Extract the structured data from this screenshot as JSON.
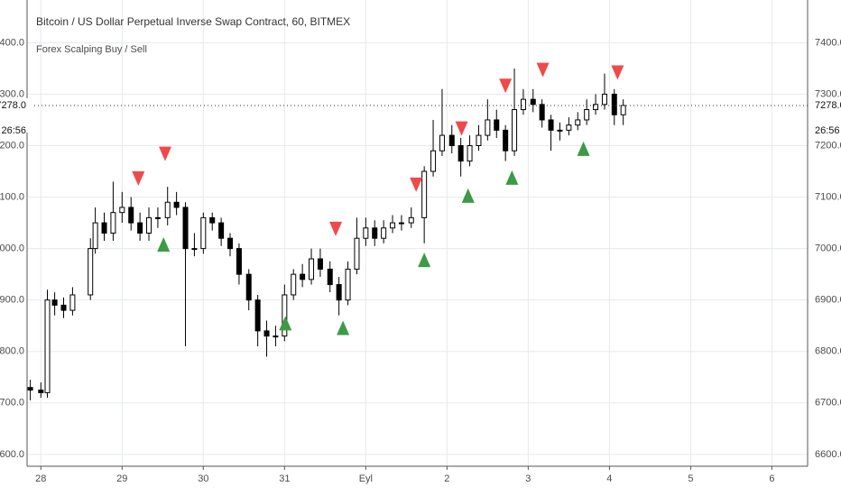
{
  "chart_data": {
    "type": "candlestick",
    "title": "Bitcoin / US Dollar Perpetual Inverse Swap Contract, 60, BITMEX",
    "subtitle": "Forex Scalping Buy / Sell",
    "x": [
      -0.13,
      0,
      0.08,
      0.17,
      0.28,
      0.39,
      0.61,
      0.67,
      0.78,
      0.89,
      1,
      1.11,
      1.22,
      1.33,
      1.44,
      1.56,
      1.67,
      1.78,
      1.89,
      2,
      2.11,
      2.22,
      2.33,
      2.44,
      2.56,
      2.67,
      2.78,
      2.89,
      3,
      3.11,
      3.22,
      3.33,
      3.44,
      3.56,
      3.67,
      3.78,
      3.89,
      4,
      4.11,
      4.22,
      4.33,
      4.44,
      4.56,
      4.72,
      4.83,
      4.94,
      5.06,
      5.17,
      5.28,
      5.39,
      5.5,
      5.61,
      5.72,
      5.83,
      5.94,
      6.06,
      6.17,
      6.28,
      6.39,
      6.5,
      6.61,
      6.72,
      6.83,
      6.94,
      7.06,
      7.17
    ],
    "open": [
      6730,
      6725,
      6720,
      6900,
      6890,
      6880,
      6910,
      7000,
      7050,
      7030,
      7070,
      7080,
      7050,
      7030,
      7060,
      7060,
      7090,
      7080,
      7000,
      7000,
      7060,
      7050,
      7020,
      7000,
      6950,
      6900,
      6840,
      6830,
      6830,
      6910,
      6950,
      6940,
      6980,
      6960,
      6930,
      6900,
      6960,
      7020,
      7040,
      7020,
      7040,
      7050,
      7050,
      7060,
      7150,
      7190,
      7220,
      7200,
      7170,
      7200,
      7220,
      7250,
      7230,
      7190,
      7270,
      7290,
      7280,
      7250,
      7230,
      7230,
      7240,
      7250,
      7270,
      7280,
      7300,
      7260
    ],
    "high": [
      6745,
      6740,
      6920,
      6915,
      6905,
      6925,
      7020,
      7080,
      7070,
      7130,
      7110,
      7100,
      7070,
      7080,
      7080,
      7120,
      7110,
      7090,
      7030,
      7070,
      7070,
      7060,
      7030,
      7010,
      6960,
      6910,
      6860,
      6850,
      6930,
      6960,
      6970,
      7000,
      7000,
      6975,
      6945,
      6975,
      7060,
      7060,
      7055,
      7055,
      7065,
      7065,
      7080,
      7160,
      7250,
      7310,
      7240,
      7215,
      7220,
      7240,
      7290,
      7270,
      7240,
      7350,
      7310,
      7310,
      7290,
      7260,
      7245,
      7255,
      7265,
      7290,
      7300,
      7340,
      7310,
      7290
    ],
    "low": [
      6705,
      6710,
      6710,
      6870,
      6865,
      6870,
      6900,
      6990,
      7015,
      7015,
      7050,
      7035,
      7015,
      7015,
      7040,
      7045,
      7065,
      6810,
      6985,
      6990,
      7035,
      7005,
      6985,
      6930,
      6880,
      6810,
      6790,
      6810,
      6820,
      6900,
      6925,
      6930,
      6945,
      6915,
      6870,
      6890,
      6950,
      7005,
      7005,
      7010,
      7030,
      7035,
      7040,
      7010,
      7140,
      7180,
      7185,
      7140,
      7160,
      7190,
      7210,
      7215,
      7170,
      7180,
      7260,
      7265,
      7235,
      7190,
      7210,
      7220,
      7230,
      7240,
      7260,
      7270,
      7240,
      7240
    ],
    "close": [
      6725,
      6720,
      6900,
      6890,
      6880,
      6910,
      7000,
      7050,
      7030,
      7070,
      7080,
      7050,
      7030,
      7060,
      7060,
      7090,
      7080,
      7000,
      7000,
      7060,
      7050,
      7020,
      7000,
      6950,
      6900,
      6840,
      6830,
      6830,
      6910,
      6950,
      6940,
      6980,
      6960,
      6930,
      6900,
      6960,
      7020,
      7040,
      7020,
      7040,
      7050,
      7050,
      7060,
      7150,
      7190,
      7220,
      7200,
      7170,
      7200,
      7220,
      7250,
      7230,
      7190,
      7270,
      7290,
      7280,
      7250,
      7230,
      7230,
      7240,
      7250,
      7270,
      7280,
      7300,
      7260,
      7278
    ],
    "sell": {
      "color": "#ef4a4a",
      "x": [
        1.2,
        1.53,
        3.63,
        4.62,
        5.18,
        5.72,
        6.18,
        7.1
      ],
      "values": [
        7136,
        7184,
        7038,
        7124,
        7233,
        7316,
        7347,
        7342
      ]
    },
    "buy": {
      "color": "#3d9a45",
      "x": [
        1.51,
        3.01,
        3.72,
        4.72,
        5.26,
        5.8,
        6.68
      ],
      "values": [
        7008,
        6855,
        6846,
        6978,
        7103,
        7138,
        7194
      ]
    },
    "last_price": {
      "value": 7278,
      "label": "7278.0"
    },
    "countdown": "26:56",
    "xlim": [
      -0.17,
      9.44
    ],
    "ylim": [
      6577,
      7483
    ],
    "xticks": [
      {
        "value": 0,
        "label": "28"
      },
      {
        "value": 1,
        "label": "29"
      },
      {
        "value": 2,
        "label": "30"
      },
      {
        "value": 3,
        "label": "31"
      },
      {
        "value": 4,
        "label": "Eyl"
      },
      {
        "value": 5,
        "label": "2"
      },
      {
        "value": 6,
        "label": "3"
      },
      {
        "value": 7,
        "label": "4"
      },
      {
        "value": 8,
        "label": "5"
      },
      {
        "value": 9,
        "label": "6"
      }
    ],
    "yticks": [
      {
        "value": 6600,
        "label": "6600.0"
      },
      {
        "value": 6700,
        "label": "6700.0"
      },
      {
        "value": 6800,
        "label": "6800.0"
      },
      {
        "value": 6900,
        "label": "6900.0"
      },
      {
        "value": 7000,
        "label": "7000.0"
      },
      {
        "value": 7100,
        "label": "7100.0"
      },
      {
        "value": 7200,
        "label": "7200.0"
      },
      {
        "value": 7300,
        "label": "7300.0"
      },
      {
        "value": 7400,
        "label": "7400.0"
      }
    ],
    "grid": true
  }
}
